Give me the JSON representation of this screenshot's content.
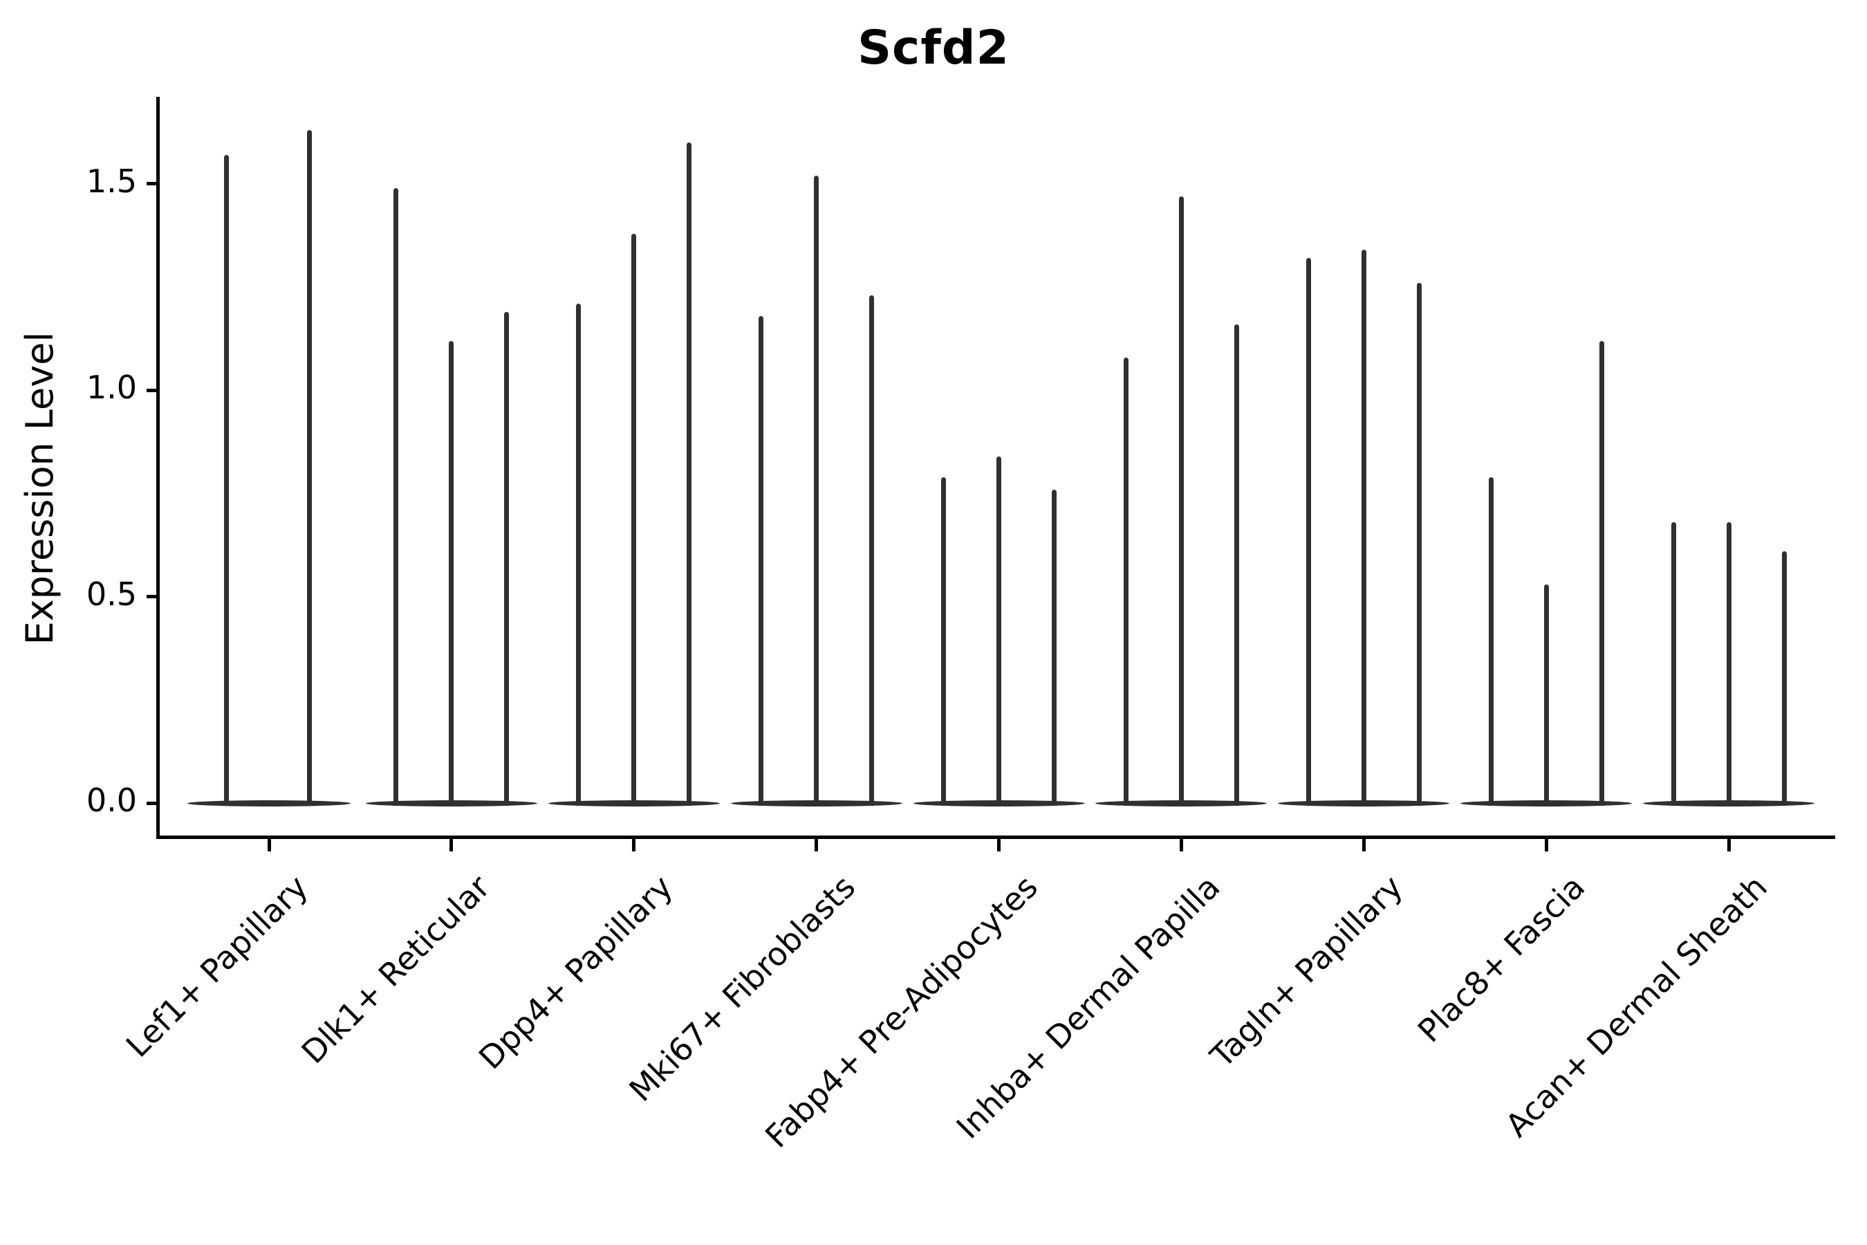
{
  "title": "Scfd2",
  "y_axis": {
    "label": "Expression Level",
    "tick_labels": [
      "1.5",
      "1.0",
      "0.5",
      "0.0"
    ]
  },
  "chart_data": {
    "type": "violin",
    "title": "Scfd2",
    "xlabel": "",
    "ylabel": "Expression Level",
    "ylim": [
      -0.08,
      1.71
    ],
    "yticks": [
      0.0,
      0.5,
      1.0,
      1.5
    ],
    "grid": false,
    "legend": "none",
    "line_color": "#303030",
    "axis_color": "#000000",
    "background_color": "#ffffff",
    "description": "Violin plot of Scfd2 expression per fibroblast cluster; each cluster holds 2-3 extremely thin violins (one per sample) whose mass sits at 0 with a narrow spike up to the listed maximum expression value.",
    "categories": [
      "Lef1+ Papillary",
      "Dlk1+ Reticular",
      "Dpp4+ Papillary",
      "Mki67+ Fibroblasts",
      "Fabp4+ Pre-Adipocytes",
      "Inhba+ Dermal Papilla",
      "Tagln+ Papillary",
      "Plac8+ Fascia",
      "Acan+ Dermal Sheath"
    ],
    "series": [
      {
        "category": "Lef1+ Papillary",
        "violin_maxima": [
          1.57,
          1.63
        ],
        "baseline_value": 0.0
      },
      {
        "category": "Dlk1+ Reticular",
        "violin_maxima": [
          1.49,
          1.12,
          1.19
        ],
        "baseline_value": 0.0
      },
      {
        "category": "Dpp4+ Papillary",
        "violin_maxima": [
          1.21,
          1.38,
          1.6
        ],
        "baseline_value": 0.0
      },
      {
        "category": "Mki67+ Fibroblasts",
        "violin_maxima": [
          1.18,
          1.52,
          1.23
        ],
        "baseline_value": 0.0
      },
      {
        "category": "Fabp4+ Pre-Adipocytes",
        "violin_maxima": [
          0.79,
          0.84,
          0.76
        ],
        "baseline_value": 0.0
      },
      {
        "category": "Inhba+ Dermal Papilla",
        "violin_maxima": [
          1.08,
          1.47,
          1.16
        ],
        "baseline_value": 0.0
      },
      {
        "category": "Tagln+ Papillary",
        "violin_maxima": [
          1.32,
          1.34,
          1.26
        ],
        "baseline_value": 0.0
      },
      {
        "category": "Plac8+ Fascia",
        "violin_maxima": [
          0.79,
          0.53,
          1.12
        ],
        "baseline_value": 0.0
      },
      {
        "category": "Acan+ Dermal Sheath",
        "violin_maxima": [
          0.68,
          0.68,
          0.61
        ],
        "baseline_value": 0.0
      }
    ]
  }
}
